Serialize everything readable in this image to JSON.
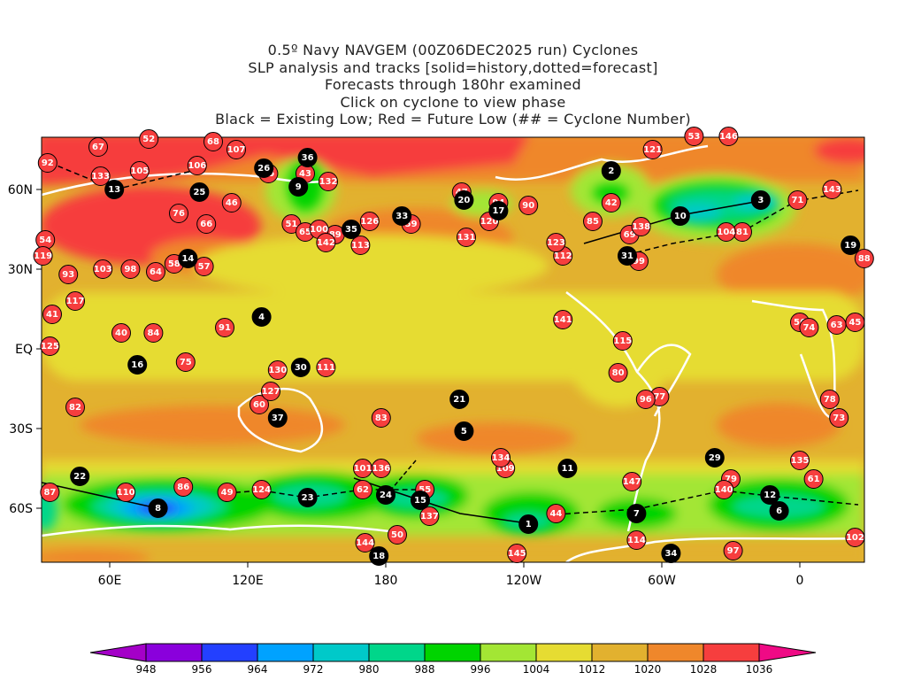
{
  "header": {
    "lines": [
      "0.5º Navy NAVGEM (00Z06DEC2025 run) Cyclones",
      "SLP analysis and tracks [solid=history,dotted=forecast]",
      "Forecasts through 180hr examined",
      "Click on cyclone to view phase",
      "Black = Existing Low; Red = Future Low (## = Cyclone Number)"
    ]
  },
  "axes": {
    "lon_ticks": [
      {
        "label": "60E",
        "lon": 60
      },
      {
        "label": "120E",
        "lon": 120
      },
      {
        "label": "180",
        "lon": 180
      },
      {
        "label": "120W",
        "lon": 240
      },
      {
        "label": "60W",
        "lon": 300
      },
      {
        "label": "0",
        "lon": 360
      }
    ],
    "lat_ticks": [
      {
        "label": "60N",
        "lat": 60
      },
      {
        "label": "30N",
        "lat": 30
      },
      {
        "label": "EQ",
        "lat": 0
      },
      {
        "label": "30S",
        "lat": -30
      },
      {
        "label": "60S",
        "lat": -60
      }
    ]
  },
  "colorbar": {
    "labels": [
      "948",
      "956",
      "964",
      "972",
      "980",
      "988",
      "996",
      "1004",
      "1012",
      "1020",
      "1028",
      "1036"
    ],
    "colors": [
      "#8a00dc",
      "#2340ff",
      "#00a2ff",
      "#00c9c9",
      "#00d68a",
      "#00d400",
      "#a3e634",
      "#e6dc32",
      "#e2b12f",
      "#ef872b",
      "#f63e3e"
    ],
    "under_color": "#a400c8",
    "over_color": "#ef0a85"
  },
  "legend_colors": {
    "existing": "#000000",
    "future": "#f63e3e"
  },
  "cyclones": {
    "existing": [
      {
        "id": "1",
        "lon": 242,
        "lat": -66
      },
      {
        "id": "2",
        "lon": 278,
        "lat": 67
      },
      {
        "id": "3",
        "lon": 343,
        "lat": 56
      },
      {
        "id": "4",
        "lon": 126,
        "lat": 12
      },
      {
        "id": "5",
        "lon": 214,
        "lat": -31
      },
      {
        "id": "6",
        "lon": 351,
        "lat": -61
      },
      {
        "id": "7",
        "lon": 289,
        "lat": -62
      },
      {
        "id": "8",
        "lon": 81,
        "lat": -60
      },
      {
        "id": "9",
        "lon": 142,
        "lat": 61
      },
      {
        "id": "10",
        "lon": 308,
        "lat": 50
      },
      {
        "id": "11",
        "lon": 259,
        "lat": -45
      },
      {
        "id": "12",
        "lon": 347,
        "lat": -55
      },
      {
        "id": "13",
        "lon": 62,
        "lat": 60
      },
      {
        "id": "14",
        "lon": 94,
        "lat": 34
      },
      {
        "id": "15",
        "lon": 195,
        "lat": -57
      },
      {
        "id": "16",
        "lon": 72,
        "lat": -6
      },
      {
        "id": "17",
        "lon": 229,
        "lat": 52
      },
      {
        "id": "18",
        "lon": 177,
        "lat": -78
      },
      {
        "id": "19",
        "lon": 22,
        "lat": 39
      },
      {
        "id": "20",
        "lon": 214,
        "lat": 56
      },
      {
        "id": "21",
        "lon": 212,
        "lat": -19
      },
      {
        "id": "22",
        "lon": 47,
        "lat": -48
      },
      {
        "id": "23",
        "lon": 146,
        "lat": -56
      },
      {
        "id": "24",
        "lon": 180,
        "lat": -55
      },
      {
        "id": "25",
        "lon": 99,
        "lat": 59
      },
      {
        "id": "26",
        "lon": 127,
        "lat": 68
      },
      {
        "id": "29",
        "lon": 323,
        "lat": -41
      },
      {
        "id": "30",
        "lon": 143,
        "lat": -7
      },
      {
        "id": "31",
        "lon": 285,
        "lat": 35
      },
      {
        "id": "33",
        "lon": 187,
        "lat": 50
      },
      {
        "id": "34",
        "lon": 304,
        "lat": -77
      },
      {
        "id": "35",
        "lon": 165,
        "lat": 45
      },
      {
        "id": "36",
        "lon": 146,
        "lat": 72
      },
      {
        "id": "37",
        "lon": 133,
        "lat": -26
      }
    ],
    "future": [
      {
        "id": "40",
        "lon": 65,
        "lat": 6
      },
      {
        "id": "41",
        "lon": 35,
        "lat": 13
      },
      {
        "id": "42",
        "lon": 278,
        "lat": 55
      },
      {
        "id": "43",
        "lon": 145,
        "lat": 66
      },
      {
        "id": "44",
        "lon": 254,
        "lat": -62
      },
      {
        "id": "45",
        "lon": 24,
        "lat": 10
      },
      {
        "id": "46",
        "lon": 113,
        "lat": 55
      },
      {
        "id": "47",
        "lon": 213,
        "lat": 59
      },
      {
        "id": "49",
        "lon": 111,
        "lat": -54
      },
      {
        "id": "50",
        "lon": 185,
        "lat": -70
      },
      {
        "id": "51",
        "lon": 139,
        "lat": 47
      },
      {
        "id": "52",
        "lon": 77,
        "lat": 79
      },
      {
        "id": "53",
        "lon": 314,
        "lat": 80
      },
      {
        "id": "54",
        "lon": 32,
        "lat": 41
      },
      {
        "id": "55",
        "lon": 197,
        "lat": -53
      },
      {
        "id": "56",
        "lon": 0,
        "lat": 10
      },
      {
        "id": "57",
        "lon": 101,
        "lat": 31
      },
      {
        "id": "58",
        "lon": 88,
        "lat": 32
      },
      {
        "id": "59",
        "lon": 191,
        "lat": 47
      },
      {
        "id": "60",
        "lon": 125,
        "lat": -21
      },
      {
        "id": "61",
        "lon": 6,
        "lat": -49
      },
      {
        "id": "62",
        "lon": 170,
        "lat": -53
      },
      {
        "id": "63",
        "lon": 16,
        "lat": 9
      },
      {
        "id": "64",
        "lon": 80,
        "lat": 29
      },
      {
        "id": "65",
        "lon": 145,
        "lat": 44
      },
      {
        "id": "66",
        "lon": 102,
        "lat": 47
      },
      {
        "id": "67",
        "lon": 55,
        "lat": 76
      },
      {
        "id": "68",
        "lon": 105,
        "lat": 78
      },
      {
        "id": "69",
        "lon": 286,
        "lat": 43
      },
      {
        "id": "71",
        "lon": 359,
        "lat": 56
      },
      {
        "id": "73",
        "lon": 17,
        "lat": -26
      },
      {
        "id": "74",
        "lon": 4,
        "lat": 8
      },
      {
        "id": "75",
        "lon": 93,
        "lat": -5
      },
      {
        "id": "76",
        "lon": 90,
        "lat": 51
      },
      {
        "id": "77",
        "lon": 299,
        "lat": -18
      },
      {
        "id": "78",
        "lon": 13,
        "lat": -19
      },
      {
        "id": "79",
        "lon": 330,
        "lat": -49
      },
      {
        "id": "80",
        "lon": 281,
        "lat": -9
      },
      {
        "id": "81",
        "lon": 335,
        "lat": 44
      },
      {
        "id": "82",
        "lon": 45,
        "lat": -22
      },
      {
        "id": "83",
        "lon": 178,
        "lat": -26
      },
      {
        "id": "84",
        "lon": 79,
        "lat": 6
      },
      {
        "id": "85",
        "lon": 270,
        "lat": 48
      },
      {
        "id": "86",
        "lon": 92,
        "lat": -52
      },
      {
        "id": "87",
        "lon": 34,
        "lat": -54
      },
      {
        "id": "88",
        "lon": 28,
        "lat": 34
      },
      {
        "id": "89",
        "lon": 158,
        "lat": 43
      },
      {
        "id": "90",
        "lon": 242,
        "lat": 54
      },
      {
        "id": "91",
        "lon": 110,
        "lat": 8
      },
      {
        "id": "92",
        "lon": 33,
        "lat": 70
      },
      {
        "id": "93",
        "lon": 42,
        "lat": 28
      },
      {
        "id": "94",
        "lon": 229,
        "lat": 55
      },
      {
        "id": "95",
        "lon": 129,
        "lat": 66
      },
      {
        "id": "96",
        "lon": 293,
        "lat": -19
      },
      {
        "id": "97",
        "lon": 331,
        "lat": -76
      },
      {
        "id": "98",
        "lon": 69,
        "lat": 30
      },
      {
        "id": "99",
        "lon": 290,
        "lat": 33
      },
      {
        "id": "100",
        "lon": 151,
        "lat": 45
      },
      {
        "id": "101",
        "lon": 170,
        "lat": -45
      },
      {
        "id": "102",
        "lon": 24,
        "lat": -71
      },
      {
        "id": "103",
        "lon": 57,
        "lat": 30
      },
      {
        "id": "104",
        "lon": 328,
        "lat": 44
      },
      {
        "id": "105",
        "lon": 73,
        "lat": 67
      },
      {
        "id": "106",
        "lon": 98,
        "lat": 69
      },
      {
        "id": "107",
        "lon": 115,
        "lat": 75
      },
      {
        "id": "109",
        "lon": 232,
        "lat": -45
      },
      {
        "id": "110",
        "lon": 67,
        "lat": -54
      },
      {
        "id": "111",
        "lon": 154,
        "lat": -7
      },
      {
        "id": "112",
        "lon": 257,
        "lat": 35
      },
      {
        "id": "113",
        "lon": 169,
        "lat": 39
      },
      {
        "id": "114",
        "lon": 289,
        "lat": -72
      },
      {
        "id": "115",
        "lon": 283,
        "lat": 3
      },
      {
        "id": "117",
        "lon": 45,
        "lat": 18
      },
      {
        "id": "119",
        "lon": 31,
        "lat": 35
      },
      {
        "id": "120",
        "lon": 225,
        "lat": 48
      },
      {
        "id": "121",
        "lon": 296,
        "lat": 75
      },
      {
        "id": "123",
        "lon": 254,
        "lat": 40
      },
      {
        "id": "124",
        "lon": 126,
        "lat": -53
      },
      {
        "id": "125",
        "lon": 34,
        "lat": 1
      },
      {
        "id": "126",
        "lon": 173,
        "lat": 48
      },
      {
        "id": "127",
        "lon": 130,
        "lat": -16
      },
      {
        "id": "130",
        "lon": 133,
        "lat": -8
      },
      {
        "id": "131",
        "lon": 215,
        "lat": 42
      },
      {
        "id": "132",
        "lon": 155,
        "lat": 63
      },
      {
        "id": "133",
        "lon": 56,
        "lat": 65
      },
      {
        "id": "134",
        "lon": 230,
        "lat": -41
      },
      {
        "id": "135",
        "lon": 0,
        "lat": -42
      },
      {
        "id": "136",
        "lon": 178,
        "lat": -45
      },
      {
        "id": "137",
        "lon": 199,
        "lat": -63
      },
      {
        "id": "138",
        "lon": 291,
        "lat": 46
      },
      {
        "id": "140",
        "lon": 327,
        "lat": -53
      },
      {
        "id": "141",
        "lon": 257,
        "lat": 11
      },
      {
        "id": "142",
        "lon": 154,
        "lat": 40
      },
      {
        "id": "143",
        "lon": 14,
        "lat": 60
      },
      {
        "id": "144",
        "lon": 171,
        "lat": -73
      },
      {
        "id": "145",
        "lon": 237,
        "lat": -77
      },
      {
        "id": "146",
        "lon": 329,
        "lat": 80
      },
      {
        "id": "147",
        "lon": 287,
        "lat": -50
      }
    ]
  }
}
